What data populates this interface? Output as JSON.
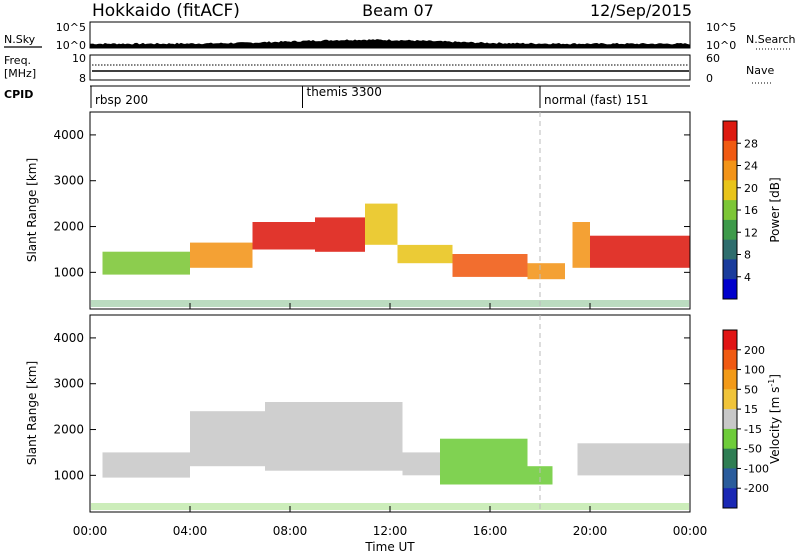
{
  "header": {
    "station": "Hokkaido (fitACF)",
    "beam": "Beam 07",
    "date": "12/Sep/2015"
  },
  "top_panels": {
    "nsky_label": "N.Sky",
    "nsearch_label": "N.Search",
    "nsky_ticks": [
      "10^5",
      "10^0"
    ],
    "nsearch_ticks": [
      "10^5",
      "10^0"
    ],
    "freq_label_1": "Freq.",
    "freq_label_2": "[MHz]",
    "freq_ticks": [
      "10",
      "8"
    ],
    "nave_label": "Nave",
    "nave_ticks": [
      "60",
      "0"
    ],
    "cpid_label": "CPID",
    "cpid_modes": [
      {
        "name": "rbsp 200",
        "start_hour": 0
      },
      {
        "name": "themis 3300",
        "start_hour": 8.5
      },
      {
        "name": "normal (fast) 151",
        "start_hour": 18
      }
    ]
  },
  "chart_data": [
    {
      "type": "heatmap",
      "title": "Power",
      "xlabel": "",
      "ylabel": "Slant Range [km]",
      "xlim_hours": [
        0,
        24
      ],
      "ylim": [
        200,
        4500
      ],
      "y_ticks": [
        1000,
        2000,
        3000,
        4000
      ],
      "colorbar": {
        "label": "Power [dB]",
        "ticks": [
          4,
          8,
          12,
          16,
          20,
          24,
          28
        ],
        "colors": [
          "#0000cc",
          "#1a3c9c",
          "#2f6e6e",
          "#3d9a4a",
          "#7cc636",
          "#e8c41a",
          "#f39418",
          "#f05a12",
          "#dd1a10"
        ]
      },
      "bands": [
        {
          "x0": 0.5,
          "x1": 4,
          "y0": 950,
          "y1": 1450,
          "level": 4
        },
        {
          "x0": 4,
          "x1": 6.5,
          "y0": 1100,
          "y1": 1650,
          "level": 6
        },
        {
          "x0": 6.5,
          "x1": 9,
          "y0": 1500,
          "y1": 2100,
          "level": 8
        },
        {
          "x0": 9,
          "x1": 11,
          "y0": 1450,
          "y1": 2200,
          "level": 8
        },
        {
          "x0": 11,
          "x1": 12.3,
          "y0": 1600,
          "y1": 2500,
          "level": 5
        },
        {
          "x0": 12.3,
          "x1": 14.5,
          "y0": 1200,
          "y1": 1600,
          "level": 5
        },
        {
          "x0": 14.5,
          "x1": 17.5,
          "y0": 900,
          "y1": 1400,
          "level": 7
        },
        {
          "x0": 17.5,
          "x1": 19,
          "y0": 850,
          "y1": 1200,
          "level": 6
        },
        {
          "x0": 19.3,
          "x1": 20,
          "y0": 1100,
          "y1": 2100,
          "level": 6
        },
        {
          "x0": 20,
          "x1": 24,
          "y0": 1100,
          "y1": 1800,
          "level": 8
        }
      ]
    },
    {
      "type": "heatmap",
      "title": "Velocity",
      "xlabel": "Time UT",
      "ylabel": "Slant Range [km]",
      "xlim_hours": [
        0,
        24
      ],
      "x_tick_labels": [
        "00:00",
        "04:00",
        "08:00",
        "12:00",
        "16:00",
        "20:00",
        "00:00"
      ],
      "ylim": [
        200,
        4500
      ],
      "y_ticks": [
        1000,
        2000,
        3000,
        4000
      ],
      "colorbar": {
        "label": "Velocity [m s^-1]",
        "ticks": [
          200,
          100,
          50,
          15,
          -15,
          -50,
          -100,
          -200
        ],
        "colors": [
          "#1a28b4",
          "#2a5c9c",
          "#2f7e54",
          "#6ecc3a",
          "#c8c8c8",
          "#f0c43a",
          "#f29a18",
          "#f05a12",
          "#e01414"
        ]
      },
      "bands": [
        {
          "x0": 0.5,
          "x1": 4,
          "y0": 950,
          "y1": 1500,
          "level": 4
        },
        {
          "x0": 4,
          "x1": 7,
          "y0": 1200,
          "y1": 2400,
          "level": 4
        },
        {
          "x0": 7,
          "x1": 12.5,
          "y0": 1100,
          "y1": 2600,
          "level": 4
        },
        {
          "x0": 12.5,
          "x1": 14,
          "y0": 1000,
          "y1": 1500,
          "level": 4
        },
        {
          "x0": 14,
          "x1": 17.5,
          "y0": 800,
          "y1": 1800,
          "level": 3
        },
        {
          "x0": 17.5,
          "x1": 18.5,
          "y0": 800,
          "y1": 1200,
          "level": 3
        },
        {
          "x0": 19.5,
          "x1": 24,
          "y0": 1000,
          "y1": 1700,
          "level": 4
        }
      ]
    }
  ],
  "colorbar_power": {
    "label": "Power [dB]",
    "ticks": [
      "28",
      "24",
      "20",
      "16",
      "12",
      "8",
      "4"
    ]
  },
  "colorbar_velocity": {
    "label_main": "Velocity [m s",
    "label_sup": "-1",
    "label_end": "]",
    "ticks": [
      "200",
      "100",
      "50",
      "15",
      "-15",
      "-50",
      "-100",
      "-200"
    ]
  },
  "axis": {
    "ylabel": "Slant Range [km]",
    "y_ticks": [
      "4000",
      "3000",
      "2000",
      "1000"
    ],
    "x_ticks": [
      "00:00",
      "04:00",
      "08:00",
      "12:00",
      "16:00",
      "20:00",
      "00:00"
    ],
    "xlabel": "Time UT"
  }
}
